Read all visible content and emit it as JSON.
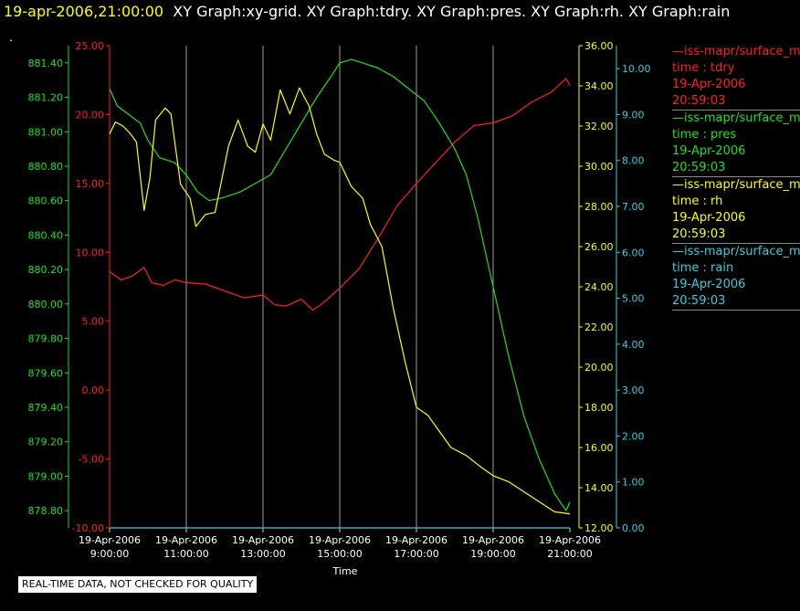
{
  "title": {
    "date": "19-apr-2006,21:00:00",
    "graphs": "XY Graph:xy-grid.  XY Graph:tdry.  XY Graph:pres.  XY Graph:rh.  XY Graph:rain"
  },
  "dot": ".",
  "notice": "REAL-TIME DATA, NOT CHECKED FOR QUALITY",
  "legend": [
    {
      "source": "—iss-mapr/surface_m",
      "var": "time : tdry",
      "date": "19-Apr-2006",
      "time": "20:59:03",
      "color": "#ff2020"
    },
    {
      "source": "—iss-mapr/surface_m",
      "var": "time : pres",
      "date": "19-Apr-2006",
      "time": "20:59:03",
      "color": "#20e020"
    },
    {
      "source": "—iss-mapr/surface_m",
      "var": "time : rh",
      "date": "19-Apr-2006",
      "time": "20:59:03",
      "color": "#ffff00"
    },
    {
      "source": "—iss-mapr/surface_m",
      "var": "time : rain",
      "date": "19-Apr-2006",
      "time": "20:59:03",
      "color": "#30d0e0"
    }
  ],
  "chart_data": {
    "type": "line",
    "xlabel": "Time",
    "x_ticks": [
      [
        "19-Apr-2006",
        "9:00:00"
      ],
      [
        "19-Apr-2006",
        "11:00:00"
      ],
      [
        "19-Apr-2006",
        "13:00:00"
      ],
      [
        "19-Apr-2006",
        "15:00:00"
      ],
      [
        "19-Apr-2006",
        "17:00:00"
      ],
      [
        "19-Apr-2006",
        "19:00:00"
      ],
      [
        "19-Apr-2006",
        "21:00:00"
      ]
    ],
    "xlim_hours": [
      9,
      21
    ],
    "grid": true,
    "axes": {
      "tdry": {
        "color": "#ff2020",
        "lim": [
          -10,
          25
        ],
        "ticks": [
          "25.00",
          "20.00",
          "15.00",
          "10.00",
          "5.00",
          "0.00",
          "-5.00",
          "-10.00"
        ]
      },
      "pres": {
        "color": "#20e020",
        "lim": [
          878.7,
          881.5
        ],
        "ticks": [
          "881.40",
          "881.20",
          "881.00",
          "880.80",
          "880.60",
          "880.40",
          "880.20",
          "880.00",
          "879.80",
          "879.60",
          "879.40",
          "879.20",
          "879.00",
          "878.80"
        ]
      },
      "rh": {
        "color": "#ffff00",
        "lim": [
          12,
          36
        ],
        "ticks": [
          "36.00",
          "34.00",
          "32.00",
          "30.00",
          "28.00",
          "26.00",
          "24.00",
          "22.00",
          "20.00",
          "18.00",
          "16.00",
          "14.00",
          "12.00"
        ]
      },
      "rain": {
        "color": "#30d0e0",
        "lim": [
          0,
          10.5
        ],
        "ticks": [
          "10.00",
          "9.00",
          "8.00",
          "7.00",
          "6.00",
          "5.00",
          "4.00",
          "3.00",
          "2.00",
          "1.00",
          "0.00"
        ]
      }
    },
    "series": [
      {
        "name": "time : tdry",
        "axis": "tdry",
        "x": [
          9.0,
          9.3,
          9.6,
          9.9,
          10.1,
          10.4,
          10.7,
          11.0,
          11.5,
          12.0,
          12.5,
          13.0,
          13.3,
          13.6,
          14.0,
          14.3,
          14.6,
          15.0,
          15.5,
          16.0,
          16.5,
          17.0,
          17.5,
          18.0,
          18.5,
          19.0,
          19.5,
          20.0,
          20.5,
          20.9,
          21.0
        ],
        "y": [
          8.6,
          8.0,
          8.3,
          8.9,
          7.8,
          7.6,
          8.0,
          7.8,
          7.7,
          7.2,
          6.7,
          6.9,
          6.2,
          6.1,
          6.6,
          5.8,
          6.4,
          7.4,
          8.8,
          11.0,
          13.4,
          15.0,
          16.5,
          18.0,
          19.2,
          19.4,
          19.9,
          20.9,
          21.6,
          22.6,
          22.1
        ]
      },
      {
        "name": "time : pres",
        "axis": "pres",
        "x": [
          9.0,
          9.2,
          9.5,
          9.8,
          10.0,
          10.3,
          10.7,
          11.0,
          11.3,
          11.6,
          12.0,
          12.4,
          12.8,
          13.2,
          13.6,
          14.0,
          14.4,
          14.8,
          15.0,
          15.3,
          15.6,
          16.0,
          16.4,
          16.8,
          17.2,
          17.6,
          18.0,
          18.3,
          18.6,
          19.0,
          19.4,
          19.8,
          20.2,
          20.6,
          20.9,
          21.0
        ],
        "y": [
          881.25,
          881.15,
          881.1,
          881.05,
          880.95,
          880.85,
          880.82,
          880.75,
          880.65,
          880.6,
          880.62,
          880.65,
          880.7,
          880.75,
          880.9,
          881.05,
          881.2,
          881.33,
          881.4,
          881.42,
          881.4,
          881.37,
          881.32,
          881.25,
          881.18,
          881.05,
          880.9,
          880.75,
          880.5,
          880.1,
          879.7,
          879.35,
          879.1,
          878.9,
          878.8,
          878.85
        ]
      },
      {
        "name": "time : rh",
        "axis": "rh",
        "x": [
          9.0,
          9.15,
          9.35,
          9.55,
          9.7,
          9.9,
          10.05,
          10.2,
          10.45,
          10.6,
          10.85,
          11.1,
          11.25,
          11.5,
          11.75,
          11.9,
          12.1,
          12.35,
          12.6,
          12.8,
          13.0,
          13.2,
          13.45,
          13.7,
          13.95,
          14.2,
          14.4,
          14.6,
          14.85,
          15.0,
          15.3,
          15.6,
          15.8,
          16.1,
          16.4,
          16.7,
          17.0,
          17.3,
          17.6,
          17.9,
          18.3,
          18.7,
          19.0,
          19.4,
          19.8,
          20.2,
          20.6,
          21.0
        ],
        "y": [
          31.6,
          32.2,
          32.0,
          31.6,
          31.2,
          27.8,
          29.4,
          32.3,
          32.9,
          32.6,
          29.1,
          28.4,
          27.0,
          27.6,
          27.7,
          29.1,
          31.0,
          32.3,
          31.0,
          30.7,
          32.1,
          31.3,
          33.8,
          32.6,
          33.9,
          33.0,
          31.6,
          30.6,
          30.3,
          30.2,
          29.0,
          28.4,
          27.1,
          26.0,
          22.9,
          20.3,
          18.0,
          17.6,
          16.8,
          16.0,
          15.6,
          15.0,
          14.6,
          14.3,
          13.8,
          13.3,
          12.8,
          12.7
        ]
      },
      {
        "name": "time : rain",
        "axis": "rain",
        "x": [
          9.0,
          21.0
        ],
        "y": [
          0.0,
          0.0
        ]
      }
    ]
  }
}
